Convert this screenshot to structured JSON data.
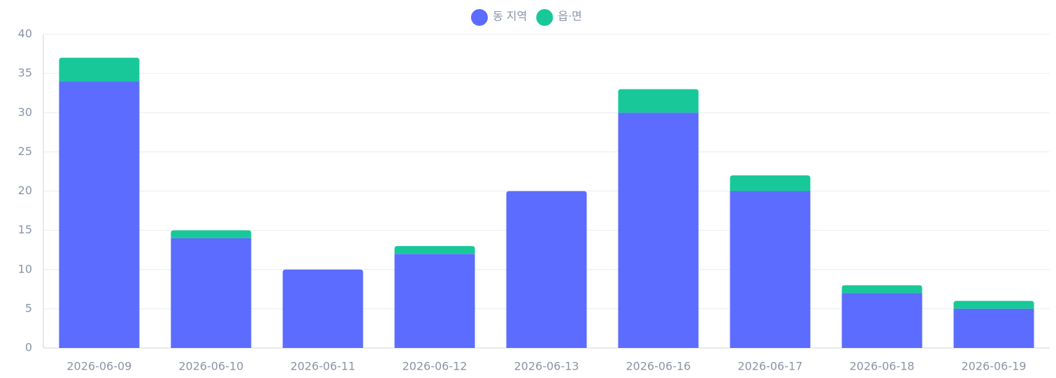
{
  "chart_data": {
    "type": "stacked_bar",
    "categories": [
      "2026-06-09",
      "2026-06-10",
      "2026-06-11",
      "2026-06-12",
      "2026-06-13",
      "2026-06-16",
      "2026-06-17",
      "2026-06-18",
      "2026-06-19"
    ],
    "series": [
      {
        "name": "동 지역",
        "color": "#5b6cff",
        "values": [
          34,
          14,
          10,
          12,
          20,
          30,
          20,
          7,
          5
        ]
      },
      {
        "name": "읍·면",
        "color": "#19c898",
        "values": [
          3,
          1,
          0,
          1,
          0,
          3,
          2,
          1,
          1
        ]
      }
    ],
    "ylim": [
      0,
      40
    ],
    "yticks": [
      0,
      5,
      10,
      15,
      20,
      25,
      30,
      35,
      40
    ],
    "grid": true,
    "legend": "top"
  }
}
